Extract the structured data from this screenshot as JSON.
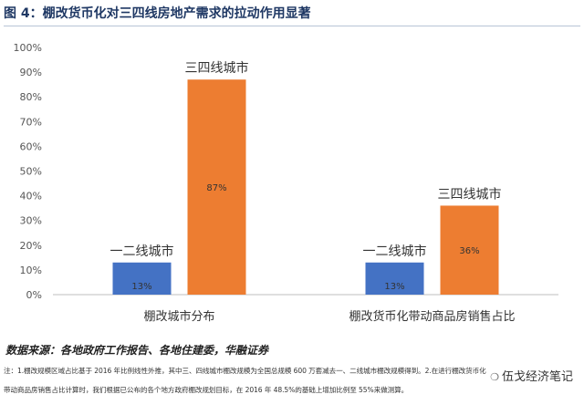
{
  "figure_title": "图 4：棚改货币化对三四线房地产需求的拉动作用显著",
  "source": "数据来源：各地政府工作报告、各地住建委，华融证券",
  "footnote_lines": [
    "注：1.棚改规模区域占比基于 2016 年比例线性外推，其中三、四线城市棚改规模为全国总规模 600 万套减去一、二线城市棚改规模得到。2.在进行棚改货币化",
    "带动商品房销售占比计算时，我们根据已公布的各个地方政府棚改规划目标，在 2016 年 48.5%的基础上增加比例至 55%来做测算。"
  ],
  "watermark": "伍戈经济笔记",
  "watermark_icon": "wechat-icon",
  "chart_data": {
    "type": "bar",
    "categories": [
      "棚改城市分布",
      "棚改货币化带动商品房销售占比"
    ],
    "series": [
      {
        "name": "一二线城市",
        "values": [
          13,
          13
        ],
        "color": "#4472c4",
        "labels": [
          "13%",
          "13%"
        ]
      },
      {
        "name": "三四线城市",
        "values": [
          87,
          36
        ],
        "color": "#ed7d31",
        "labels": [
          "87%",
          "36%"
        ]
      }
    ],
    "ylim": [
      0,
      100
    ],
    "yticks": [
      "0%",
      "10%",
      "20%",
      "30%",
      "40%",
      "50%",
      "60%",
      "70%",
      "80%",
      "90%",
      "100%"
    ],
    "grid": false,
    "legend": "none"
  }
}
